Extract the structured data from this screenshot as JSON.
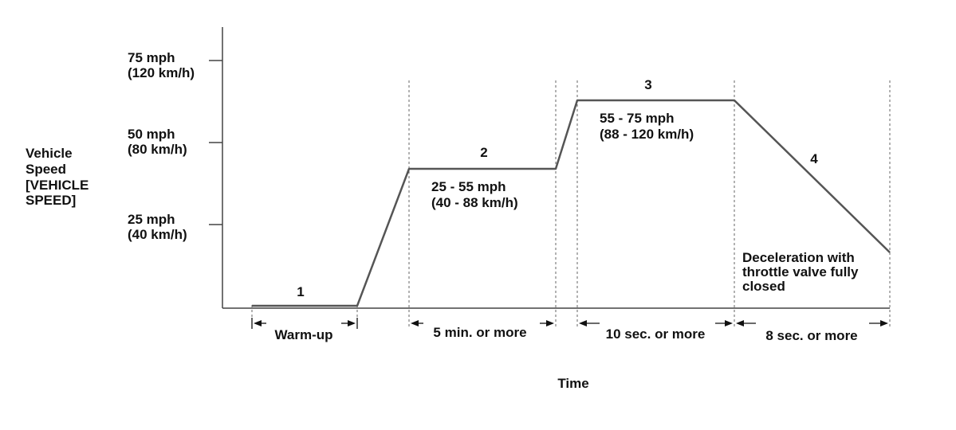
{
  "colors": {
    "line": "#555555",
    "text": "#111111",
    "axis": "#444444"
  },
  "y_axis": {
    "title": [
      "Vehicle",
      "Speed",
      "[VEHICLE",
      "SPEED]"
    ],
    "ticks": [
      {
        "mph": "75 mph",
        "kmh": "(120 km/h)"
      },
      {
        "mph": "50 mph",
        "kmh": "(80 km/h)"
      },
      {
        "mph": "25 mph",
        "kmh": "(40 km/h)"
      }
    ]
  },
  "x_axis": {
    "title": "Time"
  },
  "phases": [
    {
      "number": "1",
      "speed_range": [],
      "duration": "Warm-up"
    },
    {
      "number": "2",
      "speed_range": [
        "25 - 55 mph",
        "(40 - 88 km/h)"
      ],
      "duration": "5 min. or more"
    },
    {
      "number": "3",
      "speed_range": [
        "55 - 75 mph",
        "(88 - 120 km/h)"
      ],
      "duration": "10 sec. or more"
    },
    {
      "number": "4",
      "speed_range": [],
      "duration": "8 sec. or more"
    }
  ],
  "deceleration_note": [
    "Deceleration with",
    "throttle valve fully",
    "closed"
  ]
}
